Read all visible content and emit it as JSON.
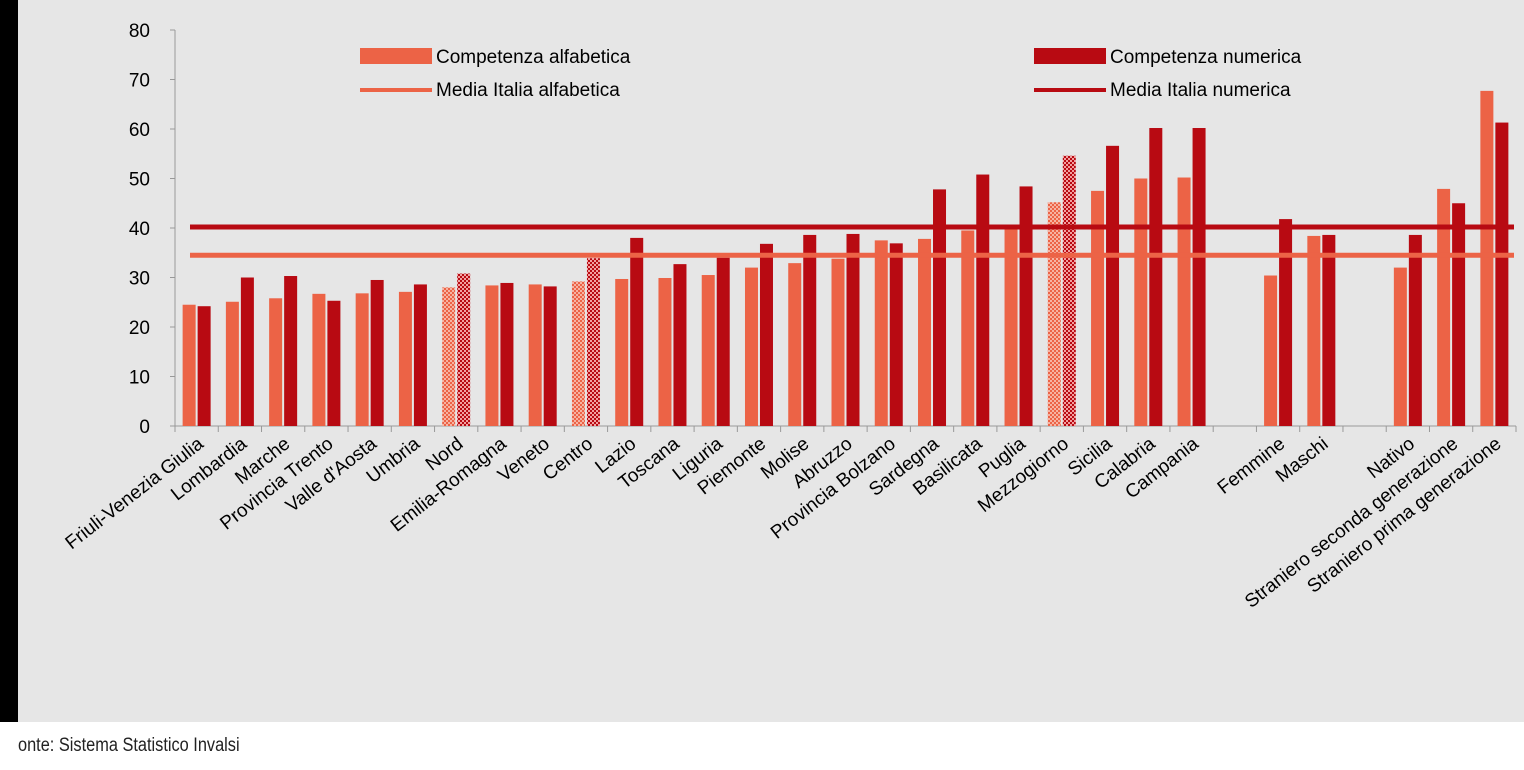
{
  "chart_data": {
    "type": "bar",
    "ylim": [
      0,
      80
    ],
    "yticks": [
      0,
      10,
      20,
      30,
      40,
      50,
      60,
      70,
      80
    ],
    "grid": false,
    "legend_position": "top",
    "colors": {
      "alfabetica": "#ec6346",
      "numerica": "#b80a12",
      "alfabetica_pattern_light": "#f6b3a2",
      "numerica_pattern_light": "#f2a0a0",
      "background": "#e6e6e6",
      "axis": "#999999"
    },
    "legend": {
      "alfabetica": "Competenza alfabetica",
      "numerica": "Competenza numerica",
      "media_alfabetica": "Media Italia alfabetica",
      "media_numerica": "Media Italia numerica"
    },
    "media_italia": {
      "alfabetica": 34.5,
      "numerica": 40.2
    },
    "groups": [
      {
        "label": "Friuli-Venezia Giulia",
        "alfabetica": 24.5,
        "numerica": 24.2,
        "pattern": false
      },
      {
        "label": "Lombardia",
        "alfabetica": 25.1,
        "numerica": 30.0,
        "pattern": false
      },
      {
        "label": "Marche",
        "alfabetica": 25.8,
        "numerica": 30.3,
        "pattern": false
      },
      {
        "label": "Provincia Trento",
        "alfabetica": 26.7,
        "numerica": 25.3,
        "pattern": false
      },
      {
        "label": "Valle d'Aosta",
        "alfabetica": 26.8,
        "numerica": 29.5,
        "pattern": false
      },
      {
        "label": "Umbria",
        "alfabetica": 27.1,
        "numerica": 28.6,
        "pattern": false
      },
      {
        "label": "Nord",
        "alfabetica": 28.0,
        "numerica": 30.8,
        "pattern": true
      },
      {
        "label": "Emilia-Romagna",
        "alfabetica": 28.4,
        "numerica": 28.9,
        "pattern": false
      },
      {
        "label": "Veneto",
        "alfabetica": 28.6,
        "numerica": 28.2,
        "pattern": false
      },
      {
        "label": "Centro",
        "alfabetica": 29.2,
        "numerica": 33.9,
        "pattern": true
      },
      {
        "label": "Lazio",
        "alfabetica": 29.7,
        "numerica": 38.0,
        "pattern": false
      },
      {
        "label": "Toscana",
        "alfabetica": 29.9,
        "numerica": 32.7,
        "pattern": false
      },
      {
        "label": "Liguria",
        "alfabetica": 30.5,
        "numerica": 34.0,
        "pattern": false
      },
      {
        "label": "Piemonte",
        "alfabetica": 32.0,
        "numerica": 36.8,
        "pattern": false
      },
      {
        "label": "Molise",
        "alfabetica": 32.9,
        "numerica": 38.6,
        "pattern": false
      },
      {
        "label": "Abruzzo",
        "alfabetica": 33.8,
        "numerica": 38.8,
        "pattern": false
      },
      {
        "label": "Provincia Bolzano",
        "alfabetica": 37.5,
        "numerica": 36.9,
        "pattern": false
      },
      {
        "label": "Sardegna",
        "alfabetica": 37.8,
        "numerica": 47.8,
        "pattern": false
      },
      {
        "label": "Basilicata",
        "alfabetica": 39.5,
        "numerica": 50.8,
        "pattern": false
      },
      {
        "label": "Puglia",
        "alfabetica": 39.8,
        "numerica": 48.4,
        "pattern": false
      },
      {
        "label": "Mezzogiorno",
        "alfabetica": 45.2,
        "numerica": 54.6,
        "pattern": true
      },
      {
        "label": "Sicilia",
        "alfabetica": 47.5,
        "numerica": 56.6,
        "pattern": false
      },
      {
        "label": "Calabria",
        "alfabetica": 50.0,
        "numerica": 60.2,
        "pattern": false
      },
      {
        "label": "Campania",
        "alfabetica": 50.2,
        "numerica": 60.2,
        "pattern": false
      },
      {
        "gap": true
      },
      {
        "label": "Femmine",
        "alfabetica": 30.4,
        "numerica": 41.8,
        "pattern": false
      },
      {
        "label": "Maschi",
        "alfabetica": 38.4,
        "numerica": 38.6,
        "pattern": false
      },
      {
        "gap": true
      },
      {
        "label": "Nativo",
        "alfabetica": 32.0,
        "numerica": 38.6,
        "pattern": false
      },
      {
        "label": "Straniero seconda generazione",
        "alfabetica": 47.9,
        "numerica": 45.0,
        "pattern": false
      },
      {
        "label": "Straniero prima generazione",
        "alfabetica": 67.7,
        "numerica": 61.3,
        "pattern": false
      }
    ]
  },
  "source": "onte: Sistema Statistico Invalsi"
}
